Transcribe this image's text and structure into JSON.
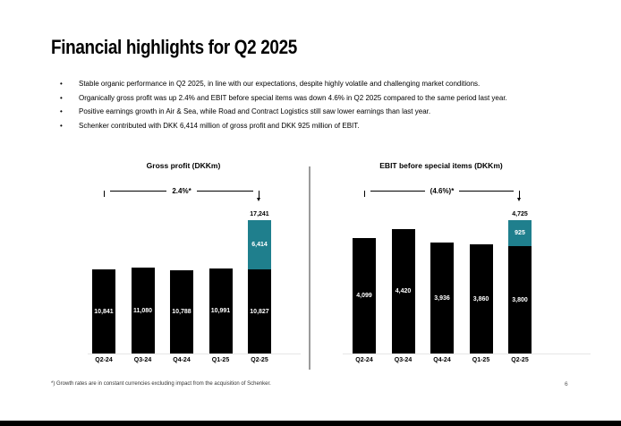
{
  "slide": {
    "title": "Financial highlights for Q2 2025",
    "bullets": [
      "Stable organic performance in Q2 2025, in line with our expectations, despite highly volatile and challenging market conditions.",
      "Organically gross profit was up 2.4% and EBIT before special items was down 4.6% in Q2 2025 compared to the same period last year.",
      "Positive earnings growth in Air & Sea, while Road and Contract Logistics still saw lower earnings than last year.",
      "Schenker contributed with DKK 6,414 million of gross profit and DKK 925 million of EBIT."
    ],
    "bullet_glyph": "•",
    "footnote": "*) Growth rates are in constant currencies excluding impact from the acquisition of Schenker.",
    "page_number": "6"
  },
  "colors": {
    "bar_black": "#000000",
    "bar_teal": "#1F7F8D",
    "divider_gray": "#9b9b9b",
    "axis_gray": "#e6e6e6"
  },
  "chart_data": [
    {
      "type": "bar",
      "title": "Gross profit (DKKm)",
      "growth_label": "2.4%*",
      "categories": [
        "Q2-24",
        "Q3-24",
        "Q4-24",
        "Q1-25",
        "Q2-25"
      ],
      "series": [
        {
          "name": "organic",
          "color": "#000000",
          "values": [
            10841,
            11080,
            10788,
            10991,
            10827
          ]
        },
        {
          "name": "schenker",
          "color": "#1F7F8D",
          "values": [
            0,
            0,
            0,
            0,
            6414
          ]
        }
      ],
      "total_labels": [
        "",
        "",
        "",
        "",
        "17,241"
      ],
      "ylim": [
        0,
        17241
      ],
      "grid": false,
      "legend_position": "none"
    },
    {
      "type": "bar",
      "title": "EBIT before special items (DKKm)",
      "growth_label": "(4.6%)*",
      "categories": [
        "Q2-24",
        "Q3-24",
        "Q4-24",
        "Q1-25",
        "Q2-25"
      ],
      "series": [
        {
          "name": "organic",
          "color": "#000000",
          "values": [
            4099,
            4420,
            3936,
            3860,
            3800
          ]
        },
        {
          "name": "schenker",
          "color": "#1F7F8D",
          "values": [
            0,
            0,
            0,
            0,
            925
          ]
        }
      ],
      "total_labels": [
        "",
        "",
        "",
        "",
        "4,725"
      ],
      "ylim": [
        0,
        4725
      ],
      "grid": false,
      "legend_position": "none"
    }
  ]
}
